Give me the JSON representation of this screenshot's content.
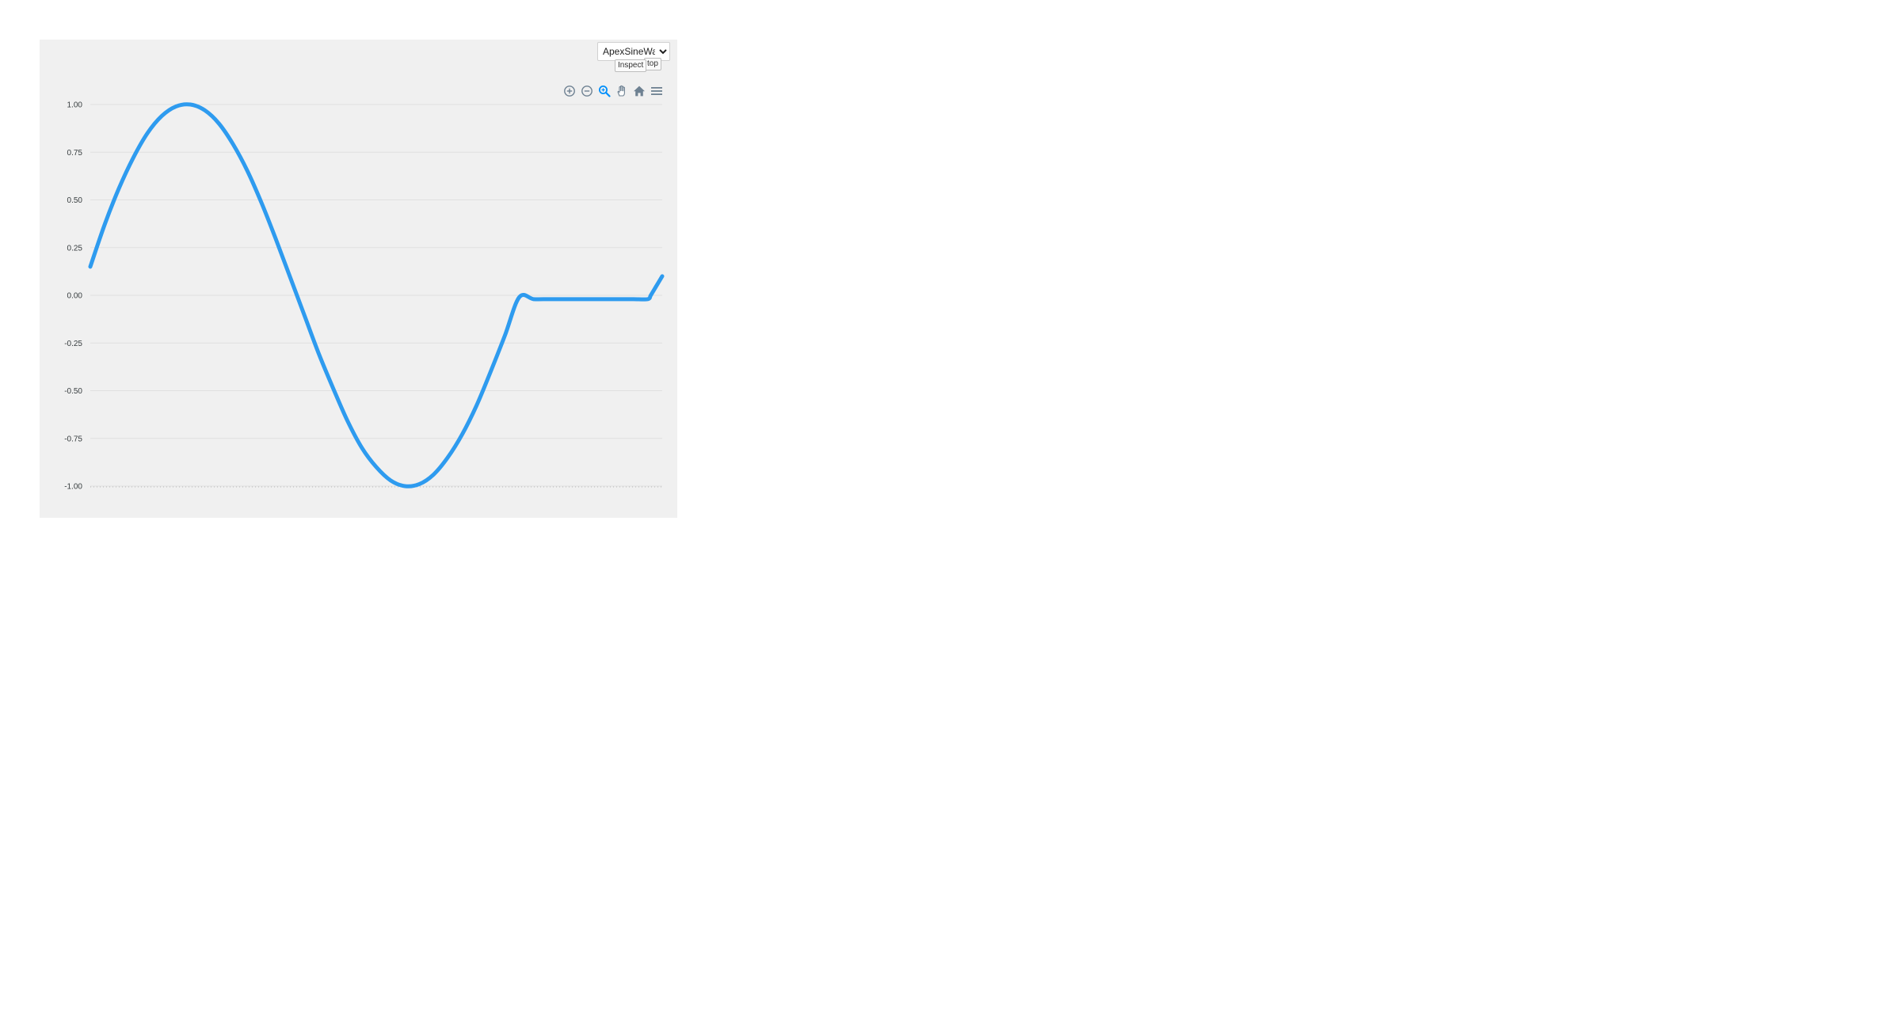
{
  "controls": {
    "demo_select": {
      "selected": "ApexSineWave",
      "options": [
        "ApexSineWave"
      ]
    },
    "stop_label": "top",
    "inspect_label": "Inspect"
  },
  "toolbar": {
    "icons": [
      "zoom-in-icon",
      "zoom-out-icon",
      "selection-zoom-icon",
      "pan-hand-icon",
      "reset-home-icon",
      "menu-icon"
    ],
    "active_color": "#008ffb",
    "inactive_color": "#6e8192"
  },
  "colors": {
    "series": "#2e9bef",
    "background": "#f0f0f0",
    "grid": "#e0e0e0",
    "tick_text": "#373d3f"
  },
  "chart_data": {
    "type": "line",
    "title": "",
    "xlabel": "",
    "ylabel": "",
    "ylim": [
      -1,
      1
    ],
    "yticks": [
      "1.00",
      "0.75",
      "0.50",
      "0.25",
      "0.00",
      "-0.25",
      "-0.50",
      "-0.75",
      "-1.00"
    ],
    "xlim": [
      0,
      1
    ],
    "grid": true,
    "legend": "none",
    "series": [
      {
        "x": [
          0,
          0.025,
          0.05,
          0.075,
          0.1,
          0.125,
          0.15,
          0.175,
          0.2,
          0.225,
          0.25,
          0.275,
          0.3,
          0.325,
          0.35,
          0.375,
          0.4,
          0.425,
          0.45,
          0.475,
          0.5,
          0.525,
          0.55,
          0.575,
          0.6,
          0.625,
          0.65,
          0.675,
          0.7,
          0.725,
          0.75,
          0.775,
          0.8,
          0.825,
          0.85,
          0.875,
          0.9,
          0.925,
          0.95,
          0.975,
          0.98,
          0.99,
          1.0
        ],
        "values": [
          0.15,
          0.37,
          0.56,
          0.72,
          0.85,
          0.94,
          0.99,
          1.0,
          0.97,
          0.9,
          0.79,
          0.65,
          0.48,
          0.29,
          0.09,
          -0.11,
          -0.31,
          -0.49,
          -0.66,
          -0.8,
          -0.9,
          -0.97,
          -1.0,
          -0.99,
          -0.94,
          -0.85,
          -0.73,
          -0.58,
          -0.4,
          -0.21,
          -0.01,
          -0.02,
          -0.02,
          -0.02,
          -0.02,
          -0.02,
          -0.02,
          -0.02,
          -0.02,
          -0.02,
          0.0,
          0.05,
          0.1
        ]
      }
    ]
  }
}
